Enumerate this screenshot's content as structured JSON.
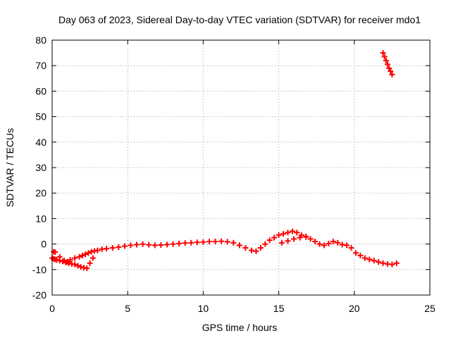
{
  "chart_data": {
    "type": "scatter",
    "title": "Day 063 of 2023, Sidereal Day-to-day VTEC variation (SDTVAR) for receiver mdo1",
    "xlabel": "GPS time / hours",
    "ylabel": "SDTVAR / TECUs",
    "xlim": [
      0,
      25
    ],
    "ylim": [
      -20,
      80
    ],
    "xticks": [
      0,
      5,
      10,
      15,
      20,
      25
    ],
    "yticks": [
      -20,
      -10,
      0,
      10,
      20,
      30,
      40,
      50,
      60,
      70,
      80
    ],
    "grid": true,
    "marker": "+",
    "color": "#ff0000",
    "series": [
      {
        "name": "mdo1",
        "x": [
          0.0,
          0.1,
          0.2,
          0.3,
          0.5,
          0.7,
          0.9,
          1.1,
          1.3,
          1.5,
          1.7,
          1.9,
          2.1,
          2.3,
          2.5,
          2.7,
          0.1,
          0.2,
          0.5,
          0.8,
          1.0,
          1.2,
          1.5,
          1.8,
          2.0,
          2.2,
          2.4,
          2.6,
          2.8,
          3.0,
          3.3,
          3.6,
          4.0,
          4.4,
          4.8,
          5.2,
          5.6,
          6.0,
          6.4,
          6.8,
          7.2,
          7.6,
          8.0,
          8.4,
          8.8,
          9.2,
          9.6,
          10.0,
          10.4,
          10.8,
          11.2,
          11.6,
          12.0,
          12.4,
          12.8,
          13.2,
          13.5,
          13.8,
          14.1,
          14.4,
          14.7,
          15.0,
          15.3,
          15.6,
          15.9,
          16.2,
          16.5,
          16.8,
          17.1,
          17.4,
          17.7,
          18.0,
          18.3,
          18.6,
          18.9,
          19.2,
          19.5,
          19.8,
          20.1,
          20.4,
          20.7,
          21.0,
          21.3,
          21.6,
          21.9,
          22.2,
          22.5,
          22.8,
          15.2,
          15.6,
          16.0,
          16.4,
          16.8,
          21.9,
          22.0,
          22.1,
          22.2,
          22.3,
          22.4,
          22.5
        ],
        "y": [
          -5.5,
          -5.8,
          -6.0,
          -6.2,
          -6.5,
          -6.8,
          -7.2,
          -7.5,
          -7.8,
          -8.0,
          -8.5,
          -9.0,
          -9.3,
          -9.5,
          -7.5,
          -5.5,
          -3.0,
          -3.2,
          -5.0,
          -6.5,
          -7.0,
          -6.2,
          -5.5,
          -5.0,
          -4.5,
          -4.0,
          -3.5,
          -3.0,
          -2.7,
          -2.5,
          -2.0,
          -1.8,
          -1.5,
          -1.2,
          -0.8,
          -0.5,
          -0.2,
          0.0,
          -0.3,
          -0.5,
          -0.4,
          -0.2,
          0.0,
          0.2,
          0.4,
          0.5,
          0.7,
          0.8,
          1.0,
          1.0,
          1.1,
          0.9,
          0.5,
          -0.5,
          -1.5,
          -2.5,
          -2.8,
          -1.5,
          0.0,
          1.5,
          2.5,
          3.5,
          4.0,
          4.5,
          5.0,
          4.5,
          3.5,
          2.8,
          2.0,
          1.0,
          0.0,
          -0.5,
          0.2,
          1.0,
          0.5,
          -0.2,
          -0.5,
          -1.5,
          -3.5,
          -4.5,
          -5.5,
          -6.0,
          -6.5,
          -7.0,
          -7.5,
          -7.8,
          -8.0,
          -7.5,
          0.5,
          1.2,
          2.0,
          2.5,
          3.0,
          75.0,
          73.5,
          72.0,
          70.5,
          69.0,
          67.8,
          66.5
        ]
      }
    ]
  }
}
